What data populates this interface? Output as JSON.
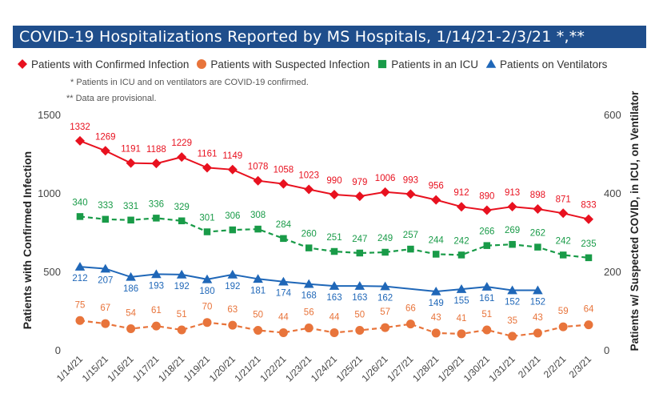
{
  "title": "COVID-19 Hospitalizations Reported by MS Hospitals, 1/14/21-2/3/21 *,**",
  "notes": [
    "* Patients in ICU and on ventilators are COVID-19 confirmed.",
    "** Data are provisional."
  ],
  "chart_data": {
    "type": "line",
    "x": [
      "1/14/21",
      "1/15/21",
      "1/16/21",
      "1/17/21",
      "1/18/21",
      "1/19/21",
      "1/20/21",
      "1/21/21",
      "1/22/21",
      "1/23/21",
      "1/24/21",
      "1/25/21",
      "1/26/21",
      "1/27/21",
      "1/28/21",
      "1/29/21",
      "1/30/21",
      "1/31/21",
      "2/1/21",
      "2/2/21",
      "2/3/21"
    ],
    "ylabel": "Patients with Confirmed Infection",
    "y2label": "Patients w/ Suspected COVID, in ICU, on Ventilator",
    "ylim": [
      0,
      1500
    ],
    "y2lim": [
      0,
      600
    ],
    "yticks": [
      0,
      500,
      1000,
      1500
    ],
    "y2ticks": [
      0,
      200,
      400,
      600
    ],
    "legend_position": "top",
    "grid": false,
    "series": [
      {
        "name": "Patients with Confirmed Infection",
        "axis": "left",
        "color": "#e8111f",
        "marker": "diamond",
        "dash": false,
        "values": [
          1332,
          1269,
          1191,
          1188,
          1229,
          1161,
          1149,
          1078,
          1058,
          1023,
          990,
          979,
          1006,
          993,
          956,
          912,
          890,
          913,
          898,
          871,
          833
        ]
      },
      {
        "name": "Patients with Suspected Infection",
        "axis": "right",
        "color": "#e8743b",
        "marker": "circle",
        "dash": true,
        "values": [
          75,
          67,
          54,
          61,
          51,
          70,
          63,
          50,
          44,
          56,
          44,
          50,
          57,
          66,
          43,
          41,
          51,
          35,
          43,
          59,
          64
        ]
      },
      {
        "name": "Patients in an ICU",
        "axis": "right",
        "color": "#199b48",
        "marker": "square",
        "dash": true,
        "values": [
          340,
          333,
          331,
          336,
          329,
          301,
          306,
          308,
          284,
          260,
          251,
          247,
          249,
          257,
          244,
          242,
          266,
          269,
          262,
          242,
          235
        ]
      },
      {
        "name": "Patients on Ventilators",
        "axis": "right",
        "color": "#1f67b8",
        "marker": "triangle",
        "dash": false,
        "values": [
          212,
          207,
          186,
          193,
          192,
          180,
          192,
          181,
          174,
          168,
          163,
          163,
          162,
          null,
          149,
          155,
          161,
          152,
          152,
          null,
          null
        ]
      }
    ]
  }
}
